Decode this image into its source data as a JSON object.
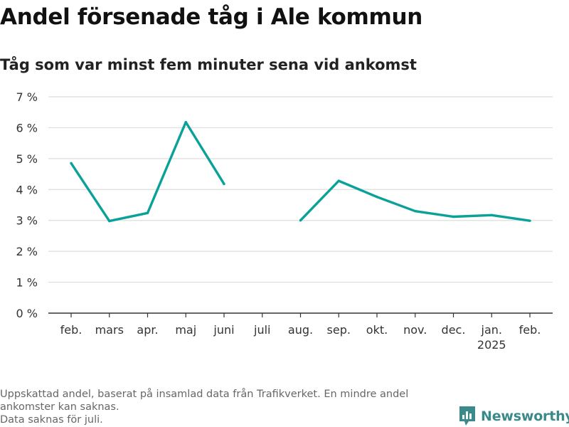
{
  "title": "Andel försenade tåg i Ale kommun",
  "subtitle": "Tåg som var minst fem minuter sena vid ankomst",
  "footnote": [
    "Uppskattad andel, baserat på insamlad data från Trafikverket. En mindre andel",
    "ankomster kan saknas.",
    "Data saknas för juli."
  ],
  "brand": {
    "name": "Newsworthy",
    "icon": "bar-chart-logo-icon"
  },
  "colors": {
    "line": "#0aa198",
    "grid": "#dddddd",
    "axis": "#333333",
    "brand": "#3a8a8c"
  },
  "chart_data": {
    "type": "line",
    "categories": [
      "feb.",
      "mars",
      "apr.",
      "maj",
      "juni",
      "juli",
      "aug.",
      "sep.",
      "okt.",
      "nov.",
      "dec.",
      "jan.",
      "feb."
    ],
    "category_sublabels": [
      "",
      "",
      "",
      "",
      "",
      "",
      "",
      "",
      "",
      "",
      "",
      "2025",
      ""
    ],
    "series": [
      {
        "values": [
          4.85,
          2.98,
          3.24,
          6.18,
          4.18,
          null,
          3.0,
          4.28,
          3.76,
          3.3,
          3.12,
          3.17,
          2.99
        ]
      }
    ],
    "yticks": [
      0,
      1,
      2,
      3,
      4,
      5,
      6,
      7
    ],
    "ytick_labels": [
      "0 %",
      "1 %",
      "2 %",
      "3 %",
      "4 %",
      "5 %",
      "6 %",
      "7 %"
    ],
    "ylim": [
      0,
      7
    ],
    "grid": true,
    "legend": "none"
  }
}
